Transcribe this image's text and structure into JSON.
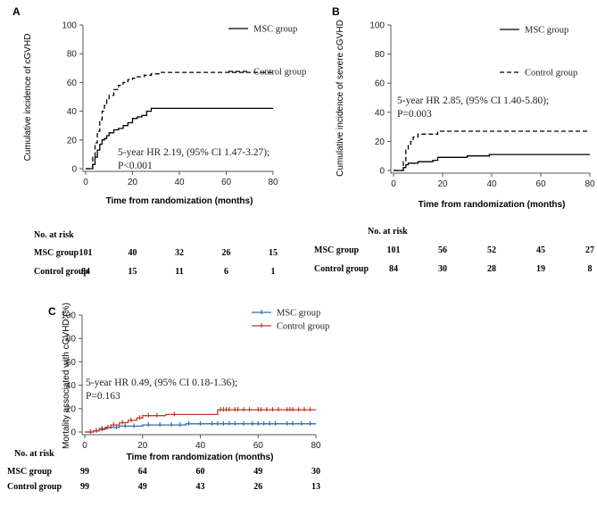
{
  "chart_data": [
    {
      "panel": "A",
      "type": "line",
      "ylabel": "Cumulative incidence of cGVHD",
      "xlabel": "Time from randomization (months)",
      "xlim": [
        0,
        80
      ],
      "ylim": [
        0,
        100
      ],
      "xticks": [
        0,
        20,
        40,
        60,
        80
      ],
      "yticks": [
        0,
        20,
        40,
        60,
        80,
        100
      ],
      "legend_position": "top-right",
      "series": [
        {
          "name": "MSC group",
          "style": "solid",
          "color": "#000000",
          "x": [
            0,
            2,
            3,
            4,
            5,
            6,
            7,
            8,
            9,
            10,
            12,
            14,
            16,
            18,
            20,
            22,
            24,
            26,
            28,
            30,
            80
          ],
          "y": [
            0,
            0,
            3,
            8,
            13,
            17,
            20,
            21,
            23,
            25,
            27,
            28,
            30,
            32,
            35,
            36,
            37,
            40,
            42,
            42,
            42
          ]
        },
        {
          "name": "Control group",
          "style": "dashed",
          "color": "#000000",
          "x": [
            0,
            2,
            3,
            4,
            5,
            6,
            7,
            8,
            9,
            10,
            12,
            14,
            16,
            18,
            20,
            22,
            25,
            28,
            32,
            36,
            80
          ],
          "y": [
            0,
            0,
            8,
            18,
            26,
            34,
            40,
            44,
            48,
            51,
            55,
            58,
            60,
            62,
            63,
            64,
            65,
            66,
            67,
            67,
            67
          ]
        }
      ],
      "annotation": [
        "5-year HR 2.19, (95% CI 1.47-3.27);",
        "P<0.001"
      ],
      "risk_table": {
        "header": "No. at risk",
        "times": [
          0,
          20,
          40,
          60,
          80
        ],
        "rows": [
          {
            "label": "MSC group",
            "values": [
              101,
              40,
              32,
              26,
              15
            ]
          },
          {
            "label": "Control group",
            "values": [
              84,
              15,
              11,
              6,
              1
            ]
          }
        ]
      }
    },
    {
      "panel": "B",
      "type": "line",
      "ylabel": "Cumulative incidence of severe cGVHD",
      "xlabel": "Time from randomization (months)",
      "xlim": [
        0,
        80
      ],
      "ylim": [
        0,
        100
      ],
      "xticks": [
        0,
        20,
        40,
        60,
        80
      ],
      "yticks": [
        0,
        20,
        40,
        60,
        80,
        100
      ],
      "legend_position": "top-right",
      "series": [
        {
          "name": "MSC group",
          "style": "solid",
          "color": "#000000",
          "x": [
            0,
            3,
            4,
            5,
            6,
            10,
            12,
            16,
            18,
            25,
            30,
            39,
            45,
            60,
            80
          ],
          "y": [
            0,
            0,
            2,
            4,
            5,
            6,
            6,
            7,
            9,
            9,
            10,
            11,
            11,
            11,
            11
          ]
        },
        {
          "name": "Control group",
          "style": "dashed",
          "color": "#000000",
          "x": [
            0,
            3,
            4,
            5,
            6,
            7,
            8,
            10,
            12,
            16,
            18,
            80
          ],
          "y": [
            0,
            0,
            6,
            14,
            18,
            20,
            23,
            25,
            25,
            25,
            27,
            27
          ]
        }
      ],
      "annotation": [
        "5-year HR 2.85, (95% CI 1.40-5.80);",
        "P=0.003"
      ],
      "risk_table": {
        "header": "No. at risk",
        "times": [
          0,
          20,
          40,
          60,
          80
        ],
        "rows": [
          {
            "label": "MSC group",
            "values": [
              101,
              56,
              52,
              45,
              27
            ]
          },
          {
            "label": "Control group",
            "values": [
              84,
              30,
              28,
              19,
              8
            ]
          }
        ]
      }
    },
    {
      "panel": "C",
      "type": "line",
      "ylabel": "Mortality associated with cGVHD (%)",
      "xlabel": "Time from randomization (months)",
      "xlim": [
        0,
        80
      ],
      "ylim": [
        0,
        100
      ],
      "xticks": [
        0,
        20,
        40,
        60,
        80
      ],
      "yticks": [
        0,
        20,
        40,
        60,
        80,
        100
      ],
      "legend_position": "top-right",
      "series": [
        {
          "name": "MSC group",
          "style": "solid",
          "color": "#2f6fb0",
          "x": [
            0,
            3,
            5,
            8,
            12,
            20,
            35,
            80
          ],
          "y": [
            0,
            1,
            3,
            4,
            5,
            6,
            7,
            7
          ],
          "censor_x": [
            2,
            4,
            6,
            9,
            11,
            14,
            17,
            22,
            26,
            30,
            33,
            36,
            40,
            44,
            46,
            48,
            50,
            52,
            55,
            58,
            60,
            62,
            64,
            66,
            70,
            72,
            75,
            78
          ]
        },
        {
          "name": "Control group",
          "style": "solid",
          "color": "#c0392b",
          "x": [
            0,
            3,
            5,
            7,
            9,
            12,
            15,
            18,
            20,
            28,
            46,
            80
          ],
          "y": [
            0,
            1,
            2,
            4,
            6,
            8,
            10,
            12,
            14,
            15,
            19,
            19
          ],
          "censor_x": [
            2,
            4,
            6,
            8,
            10,
            13,
            16,
            19,
            22,
            25,
            31,
            47,
            48,
            49,
            50,
            52,
            53,
            55,
            57,
            60,
            61,
            63,
            65,
            67,
            70,
            71,
            72,
            74,
            76,
            78
          ]
        }
      ],
      "annotation": [
        "5-year HR 0.49, (95% CI 0.18-1.36);",
        "P=0.163"
      ],
      "risk_table": {
        "header": "No. at risk",
        "times": [
          0,
          20,
          40,
          60,
          80
        ],
        "rows": [
          {
            "label": "MSC group",
            "values": [
              99,
              64,
              60,
              49,
              30
            ]
          },
          {
            "label": "Control group",
            "values": [
              99,
              49,
              43,
              26,
              13
            ]
          }
        ]
      }
    }
  ]
}
